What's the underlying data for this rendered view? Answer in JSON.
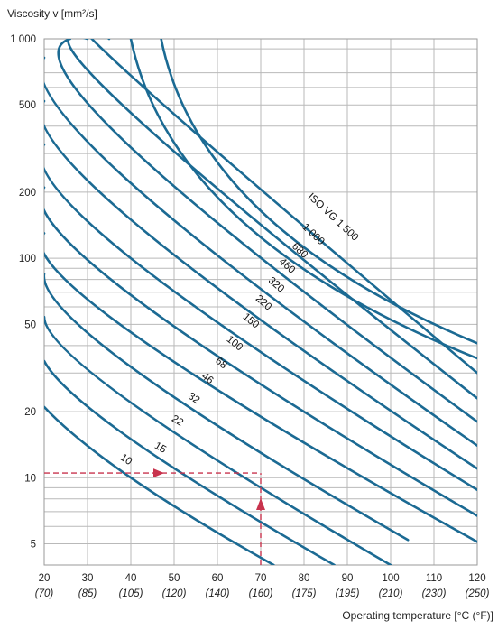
{
  "chart_data": {
    "type": "line",
    "title": "",
    "ylabel": "Viscosity v [mm²/s]",
    "xlabel": "Operating temperature [°C (°F)]",
    "y_scale": "log",
    "ylim": [
      4,
      1000
    ],
    "xlim": [
      20,
      120
    ],
    "grid": true,
    "line_color": "#1b6a93",
    "annotation_color": "#c8334d",
    "y_ticks": [
      {
        "value": 1000,
        "label": "1 000"
      },
      {
        "value": 500,
        "label": "500"
      },
      {
        "value": 200,
        "label": "200"
      },
      {
        "value": 100,
        "label": "100"
      },
      {
        "value": 50,
        "label": "50"
      },
      {
        "value": 20,
        "label": "20"
      },
      {
        "value": 10,
        "label": "10"
      },
      {
        "value": 5,
        "label": "5"
      }
    ],
    "x_ticks": [
      {
        "value": 20,
        "label": "20",
        "sub": "(70)"
      },
      {
        "value": 30,
        "label": "30",
        "sub": "(85)"
      },
      {
        "value": 40,
        "label": "40",
        "sub": "(105)"
      },
      {
        "value": 50,
        "label": "50",
        "sub": "(120)"
      },
      {
        "value": 60,
        "label": "60",
        "sub": "(140)"
      },
      {
        "value": 70,
        "label": "70",
        "sub": "(160)"
      },
      {
        "value": 80,
        "label": "80",
        "sub": "(175)"
      },
      {
        "value": 90,
        "label": "90",
        "sub": "(195)"
      },
      {
        "value": 100,
        "label": "100",
        "sub": "(210)"
      },
      {
        "value": 110,
        "label": "110",
        "sub": "(230)"
      },
      {
        "value": 120,
        "label": "120",
        "sub": "(250)"
      }
    ],
    "series": [
      {
        "name": "10",
        "label": "10",
        "points": [
          [
            20,
            21
          ],
          [
            40,
            10
          ],
          [
            73,
            4
          ]
        ]
      },
      {
        "name": "15",
        "label": "15",
        "points": [
          [
            20,
            34
          ],
          [
            40,
            15
          ],
          [
            87,
            4
          ]
        ]
      },
      {
        "name": "22",
        "label": "22",
        "points": [
          [
            20,
            54
          ],
          [
            40,
            22
          ],
          [
            100,
            4
          ]
        ]
      },
      {
        "name": "32",
        "label": "32",
        "points": [
          [
            20,
            85
          ],
          [
            40,
            32
          ],
          [
            104,
            5.2
          ]
        ]
      },
      {
        "name": "46",
        "label": "46",
        "points": [
          [
            20,
            130
          ],
          [
            40,
            46
          ],
          [
            120,
            5.1
          ]
        ]
      },
      {
        "name": "68",
        "label": "68",
        "points": [
          [
            20,
            210
          ],
          [
            40,
            68
          ],
          [
            120,
            6.7
          ]
        ]
      },
      {
        "name": "100",
        "label": "100",
        "points": [
          [
            20,
            330
          ],
          [
            40,
            100
          ],
          [
            120,
            8.8
          ]
        ]
      },
      {
        "name": "150",
        "label": "150",
        "points": [
          [
            20,
            520
          ],
          [
            40,
            150
          ],
          [
            120,
            11
          ]
        ]
      },
      {
        "name": "220",
        "label": "220",
        "points": [
          [
            20,
            820
          ],
          [
            40,
            220
          ],
          [
            120,
            14
          ]
        ]
      },
      {
        "name": "320",
        "label": "320",
        "points": [
          [
            26,
            1000
          ],
          [
            40,
            320
          ],
          [
            120,
            18
          ]
        ]
      },
      {
        "name": "460",
        "label": "460",
        "points": [
          [
            30,
            1000
          ],
          [
            40,
            460
          ],
          [
            120,
            23
          ]
        ]
      },
      {
        "name": "680",
        "label": "680",
        "points": [
          [
            35,
            1000
          ],
          [
            40,
            680
          ],
          [
            120,
            30
          ]
        ]
      },
      {
        "name": "1 000",
        "label": "1 000",
        "points": [
          [
            40,
            1000
          ],
          [
            120,
            35
          ]
        ]
      },
      {
        "name": "ISO VG 1 500",
        "label": "ISO VG 1 500",
        "points": [
          [
            47,
            1000
          ],
          [
            120,
            41
          ]
        ]
      }
    ],
    "annotation": {
      "horizontal": {
        "x_from": 20,
        "x_to": 70,
        "y": 10.5
      },
      "vertical": {
        "x": 70,
        "y_from": 4,
        "y_to": 10.5
      }
    }
  }
}
